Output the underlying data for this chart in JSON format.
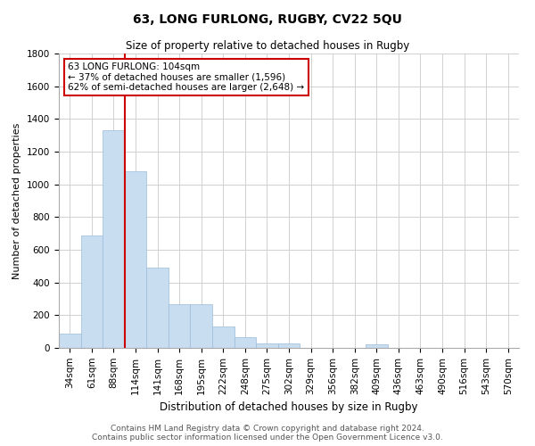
{
  "title": "63, LONG FURLONG, RUGBY, CV22 5QU",
  "subtitle": "Size of property relative to detached houses in Rugby",
  "xlabel": "Distribution of detached houses by size in Rugby",
  "ylabel": "Number of detached properties",
  "footer_line1": "Contains HM Land Registry data © Crown copyright and database right 2024.",
  "footer_line2": "Contains public sector information licensed under the Open Government Licence v3.0.",
  "categories": [
    "34sqm",
    "61sqm",
    "88sqm",
    "114sqm",
    "141sqm",
    "168sqm",
    "195sqm",
    "222sqm",
    "248sqm",
    "275sqm",
    "302sqm",
    "329sqm",
    "356sqm",
    "382sqm",
    "409sqm",
    "436sqm",
    "463sqm",
    "490sqm",
    "516sqm",
    "543sqm",
    "570sqm"
  ],
  "values": [
    90,
    690,
    1330,
    1080,
    490,
    265,
    265,
    130,
    65,
    30,
    30,
    0,
    0,
    0,
    20,
    0,
    0,
    0,
    0,
    0,
    0
  ],
  "bar_color": "#c8ddef",
  "bar_edge_color": "#9bbcda",
  "annotation_text_line1": "63 LONG FURLONG: 104sqm",
  "annotation_text_line2": "← 37% of detached houses are smaller (1,596)",
  "annotation_text_line3": "62% of semi-detached houses are larger (2,648) →",
  "annotation_box_color": "#ffffff",
  "annotation_box_edge_color": "#cc0000",
  "red_line_color": "#cc0000",
  "ylim": [
    0,
    1800
  ],
  "yticks": [
    0,
    200,
    400,
    600,
    800,
    1000,
    1200,
    1400,
    1600,
    1800
  ],
  "grid_color": "#d0d0d0",
  "background_color": "#ffffff",
  "title_fontsize": 10,
  "subtitle_fontsize": 8.5,
  "xlabel_fontsize": 8.5,
  "ylabel_fontsize": 8,
  "tick_fontsize": 7.5,
  "annotation_fontsize": 7.5,
  "footer_fontsize": 6.5,
  "red_line_x": 2.5
}
